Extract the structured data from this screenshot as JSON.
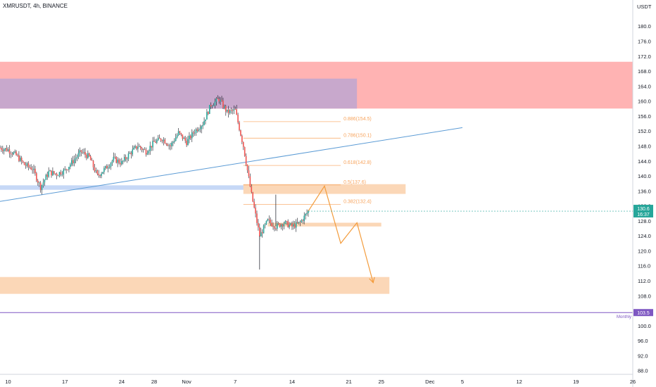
{
  "header": {
    "symbol_title": "XMRUSDT, 4h, BINANCE",
    "currency": "USDT"
  },
  "chart_data": {
    "type": "candlestick",
    "symbol": "XMRUSDT",
    "interval": "4h",
    "exchange": "BINANCE",
    "y_axis": {
      "unit": "USDT",
      "range": [
        87.0,
        187.0
      ],
      "ticks": [
        88.0,
        92.0,
        96.0,
        100.0,
        104.0,
        108.0,
        112.0,
        116.0,
        120.0,
        124.0,
        128.0,
        132.0,
        136.0,
        140.0,
        144.0,
        148.0,
        152.0,
        156.0,
        160.0,
        164.0,
        168.0,
        172.0,
        176.0,
        180.0
      ],
      "tick_labels": [
        "88.0",
        "92.0",
        "96.0",
        "100.0",
        "104.0",
        "108.0",
        "112.0",
        "116.0",
        "120.0",
        "124.0",
        "128.0",
        "132.0",
        "136.0",
        "140.0",
        "144.0",
        "148.0",
        "152.0",
        "156.0",
        "160.0",
        "164.0",
        "168.0",
        "172.0",
        "176.0",
        "180.0"
      ]
    },
    "x_axis": {
      "range": [
        "Oct 9",
        "Dec 26"
      ],
      "ticks": [
        {
          "date": "Oct 10",
          "label": "10"
        },
        {
          "date": "Oct 17",
          "label": "17"
        },
        {
          "date": "Oct 24",
          "label": "24"
        },
        {
          "date": "Oct 28",
          "label": "28"
        },
        {
          "date": "Nov 1",
          "label": "Nov"
        },
        {
          "date": "Nov 7",
          "label": "7"
        },
        {
          "date": "Nov 14",
          "label": "14"
        },
        {
          "date": "Nov 21",
          "label": "21"
        },
        {
          "date": "Nov 25",
          "label": "25"
        },
        {
          "date": "Dec 1",
          "label": "Dec"
        },
        {
          "date": "Dec 5",
          "label": "5"
        },
        {
          "date": "Dec 12",
          "label": "12"
        },
        {
          "date": "Dec 19",
          "label": "19"
        },
        {
          "date": "Dec 26",
          "label": "26"
        }
      ]
    },
    "price_path": [
      [
        "Oct 9",
        147.5
      ],
      [
        "Oct 10",
        147.0
      ],
      [
        "Oct 11",
        145.5
      ],
      [
        "Oct 12",
        143.0
      ],
      [
        "Oct 13",
        142.0
      ],
      [
        "Oct 14",
        137.0
      ],
      [
        "Oct 15",
        141.0
      ],
      [
        "Oct 16",
        140.5
      ],
      [
        "Oct 17",
        141.5
      ],
      [
        "Oct 18",
        144.0
      ],
      [
        "Oct 19",
        146.5
      ],
      [
        "Oct 20",
        145.0
      ],
      [
        "Oct 21",
        140.0
      ],
      [
        "Oct 22",
        142.0
      ],
      [
        "Oct 23",
        144.5
      ],
      [
        "Oct 24",
        143.5
      ],
      [
        "Oct 25",
        146.0
      ],
      [
        "Oct 26",
        148.0
      ],
      [
        "Oct 27",
        146.5
      ],
      [
        "Oct 28",
        149.0
      ],
      [
        "Oct 29",
        150.0
      ],
      [
        "Oct 30",
        148.0
      ],
      [
        "Oct 31",
        151.5
      ],
      [
        "Nov 1",
        149.0
      ],
      [
        "Nov 2",
        152.0
      ],
      [
        "Nov 3",
        154.0
      ],
      [
        "Nov 4",
        159.0
      ],
      [
        "Nov 5",
        160.5
      ],
      [
        "Nov 6",
        157.0
      ],
      [
        "Nov 7",
        157.5
      ],
      [
        "Nov 8",
        148.0
      ],
      [
        "Nov 9",
        135.0
      ],
      [
        "Nov 10",
        124.0
      ],
      [
        "Nov 11",
        128.0
      ],
      [
        "Nov 12",
        126.5
      ],
      [
        "Nov 13",
        127.5
      ],
      [
        "Nov 14",
        126.5
      ],
      [
        "Nov 15",
        127.5
      ],
      [
        "Nov 16",
        130.6
      ]
    ],
    "candle_highlights": [
      {
        "date": "Nov 5",
        "high": 161.2
      },
      {
        "date": "Nov 10",
        "low": 115.0
      },
      {
        "date": "Nov 12",
        "high": 135.0
      }
    ],
    "last_price": {
      "value": 130.6,
      "label": "130.6",
      "timer": "16:37",
      "color": "#26a69a"
    },
    "monthly_level": {
      "value": 103.5,
      "label": "103.5",
      "tag": "Monthly",
      "color": "#7e57c2"
    },
    "fibonacci": {
      "color": "#f7a35c",
      "levels": [
        {
          "ratio": 0.886,
          "value": 154.5,
          "label": "0.886(154.5)"
        },
        {
          "ratio": 0.786,
          "value": 150.1,
          "label": "0.786(150.1)"
        },
        {
          "ratio": 0.618,
          "value": 142.8,
          "label": "0.618(142.8)"
        },
        {
          "ratio": 0.5,
          "value": 137.6,
          "label": "0.5(137.6)"
        },
        {
          "ratio": 0.382,
          "value": 132.4,
          "label": "0.382(132.4)"
        }
      ]
    },
    "zones": [
      {
        "name": "red-supply-zone",
        "x": [
          "Oct 9",
          "Dec 26"
        ],
        "y": [
          158.0,
          170.5
        ],
        "color": "#ffb3b3"
      },
      {
        "name": "purple-zone",
        "x": [
          "Oct 9",
          "Nov 22"
        ],
        "y": [
          158.0,
          166.0
        ],
        "color": "#c8a8cc"
      },
      {
        "name": "blue-support-zone",
        "x": [
          "Oct 9",
          "Nov 9"
        ],
        "y": [
          136.3,
          137.5
        ],
        "color": "#c6d8f6"
      },
      {
        "name": "orange-resistance-zone",
        "x": [
          "Nov 8",
          "Nov 28"
        ],
        "y": [
          135.2,
          137.8
        ],
        "color": "#fbd7b7"
      },
      {
        "name": "orange-small-zone",
        "x": [
          "Nov 11",
          "Nov 25"
        ],
        "y": [
          126.5,
          127.5
        ],
        "color": "#fbd7b7"
      },
      {
        "name": "orange-demand-zone",
        "x": [
          "Oct 9",
          "Nov 26"
        ],
        "y": [
          108.5,
          113.0
        ],
        "color": "#fbd7b7"
      }
    ],
    "trendline": {
      "from": [
        "Oct 9",
        133.2
      ],
      "to": [
        "Dec 5",
        152.9
      ],
      "color": "#5b9bd5"
    },
    "projection_path": {
      "points": [
        [
          "Nov 16",
          130.6
        ],
        [
          "Nov 18",
          137.3
        ],
        [
          "Nov 20",
          122.0
        ],
        [
          "Nov 22",
          127.5
        ],
        [
          "Nov 24",
          111.5
        ]
      ],
      "color": "#f39c3c"
    },
    "grid": false
  }
}
